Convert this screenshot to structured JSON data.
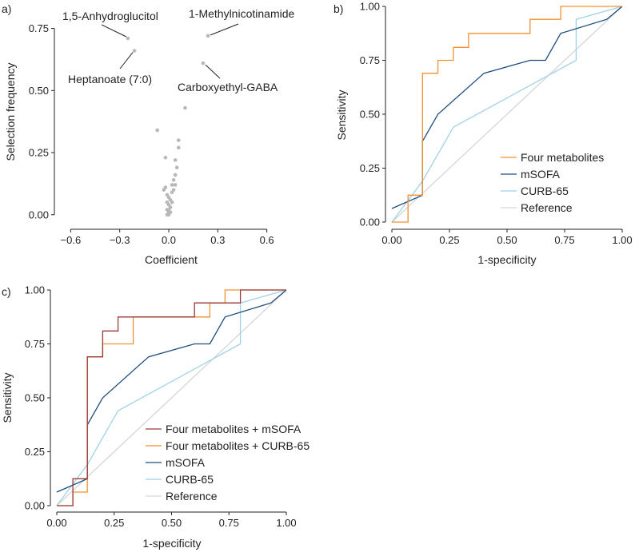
{
  "chart_data": [
    {
      "panel": "a)",
      "type": "scatter",
      "xlabel": "Coefficient",
      "ylabel": "Selection frequency",
      "xlim": [
        -0.68,
        0.68
      ],
      "ylim": [
        -0.02,
        0.8
      ],
      "xticks": [
        -0.6,
        -0.3,
        0.0,
        0.3,
        0.6
      ],
      "xtick_labels": [
        "−0.6",
        "−0.3",
        "0.0",
        "0.3",
        "0.6"
      ],
      "yticks": [
        0.0,
        0.25,
        0.5,
        0.75
      ],
      "ytick_labels": [
        "0.00",
        "0.25",
        "0.50",
        "0.75"
      ],
      "point_color": "#b8b8b8",
      "points": [
        [
          -0.25,
          0.71
        ],
        [
          -0.21,
          0.66
        ],
        [
          0.24,
          0.72
        ],
        [
          0.21,
          0.61
        ],
        [
          0.1,
          0.43
        ],
        [
          -0.07,
          0.34
        ],
        [
          0.06,
          0.3
        ],
        [
          0.06,
          0.27
        ],
        [
          -0.02,
          0.23
        ],
        [
          0.04,
          0.22
        ],
        [
          0.05,
          0.19
        ],
        [
          0.04,
          0.16
        ],
        [
          0.03,
          0.14
        ],
        [
          0.04,
          0.12
        ],
        [
          0.03,
          0.1
        ],
        [
          0.02,
          0.09
        ],
        [
          -0.02,
          0.11
        ],
        [
          -0.01,
          0.08
        ],
        [
          0.0,
          0.07
        ],
        [
          0.01,
          0.06
        ],
        [
          -0.01,
          0.05
        ],
        [
          0.02,
          0.05
        ],
        [
          0.0,
          0.04
        ],
        [
          0.01,
          0.03
        ],
        [
          -0.01,
          0.02
        ],
        [
          0.0,
          0.02
        ],
        [
          0.01,
          0.01
        ],
        [
          0.0,
          0.01
        ],
        [
          -0.01,
          0.0
        ],
        [
          0.0,
          0.0
        ],
        [
          0.02,
          0.12
        ],
        [
          -0.03,
          0.1
        ]
      ],
      "annotations": [
        {
          "text": "1,5-Anhydroglucitol",
          "x": -0.25,
          "y": 0.71
        },
        {
          "text": "Heptanoate (7:0)",
          "x": -0.21,
          "y": 0.66
        },
        {
          "text": "1-Methylnicotinamide",
          "x": 0.24,
          "y": 0.72
        },
        {
          "text": "Carboxyethyl-GABA",
          "x": 0.21,
          "y": 0.61
        }
      ]
    },
    {
      "panel": "b)",
      "type": "line",
      "xlabel": "1-specificity",
      "ylabel": "Sensitivity",
      "xlim": [
        0,
        1
      ],
      "ylim": [
        0,
        1
      ],
      "xticks": [
        0,
        0.25,
        0.5,
        0.75,
        1.0
      ],
      "xtick_labels": [
        "0.00",
        "0.25",
        "0.50",
        "0.75",
        "1.00"
      ],
      "yticks": [
        0,
        0.25,
        0.5,
        0.75,
        1.0
      ],
      "ytick_labels": [
        "0.00",
        "0.25",
        "0.50",
        "0.75",
        "1.00"
      ],
      "legend_position": "bottom-right",
      "series": [
        {
          "name": "Four metabolites",
          "color": "#f0922e",
          "step": true,
          "points": [
            [
              0,
              0
            ],
            [
              0.07,
              0
            ],
            [
              0.07,
              0.125
            ],
            [
              0.133,
              0.125
            ],
            [
              0.133,
              0.69
            ],
            [
              0.2,
              0.69
            ],
            [
              0.2,
              0.75
            ],
            [
              0.267,
              0.75
            ],
            [
              0.267,
              0.81
            ],
            [
              0.333,
              0.81
            ],
            [
              0.333,
              0.875
            ],
            [
              0.6,
              0.875
            ],
            [
              0.6,
              0.94
            ],
            [
              0.733,
              0.94
            ],
            [
              0.733,
              1.0
            ],
            [
              1.0,
              1.0
            ]
          ]
        },
        {
          "name": "mSOFA",
          "color": "#1d4d7e",
          "step": false,
          "points": [
            [
              0,
              0.063
            ],
            [
              0.133,
              0.125
            ],
            [
              0.133,
              0.375
            ],
            [
              0.2,
              0.5
            ],
            [
              0.4,
              0.69
            ],
            [
              0.6,
              0.75
            ],
            [
              0.667,
              0.75
            ],
            [
              0.733,
              0.875
            ],
            [
              0.933,
              0.94
            ],
            [
              1.0,
              1.0
            ]
          ]
        },
        {
          "name": "CURB-65",
          "color": "#9fd1e8",
          "step": false,
          "points": [
            [
              0,
              0
            ],
            [
              0.133,
              0.19
            ],
            [
              0.267,
              0.44
            ],
            [
              0.8,
              0.75
            ],
            [
              0.8,
              0.94
            ],
            [
              1.0,
              1.0
            ]
          ]
        },
        {
          "name": "Reference",
          "color": "#d6d6d6",
          "step": false,
          "points": [
            [
              0,
              0
            ],
            [
              1,
              1
            ]
          ]
        }
      ]
    },
    {
      "panel": "c)",
      "type": "line",
      "xlabel": "1-specificity",
      "ylabel": "Sensitivity",
      "xlim": [
        0,
        1
      ],
      "ylim": [
        0,
        1
      ],
      "xticks": [
        0,
        0.25,
        0.5,
        0.75,
        1.0
      ],
      "xtick_labels": [
        "0.00",
        "0.25",
        "0.50",
        "0.75",
        "1.00"
      ],
      "yticks": [
        0,
        0.25,
        0.5,
        0.75,
        1.0
      ],
      "ytick_labels": [
        "0.00",
        "0.25",
        "0.50",
        "0.75",
        "1.00"
      ],
      "legend_position": "bottom-right",
      "series": [
        {
          "name": "Four metabolites + mSOFA",
          "color": "#9c3a3a",
          "step": true,
          "points": [
            [
              0,
              0
            ],
            [
              0.07,
              0
            ],
            [
              0.07,
              0.125
            ],
            [
              0.133,
              0.125
            ],
            [
              0.133,
              0.69
            ],
            [
              0.2,
              0.69
            ],
            [
              0.2,
              0.81
            ],
            [
              0.267,
              0.81
            ],
            [
              0.267,
              0.875
            ],
            [
              0.6,
              0.875
            ],
            [
              0.6,
              0.94
            ],
            [
              0.8,
              0.94
            ],
            [
              0.8,
              1.0
            ],
            [
              1.0,
              1.0
            ]
          ]
        },
        {
          "name": "Four metabolites + CURB-65",
          "color": "#f0922e",
          "step": true,
          "points": [
            [
              0,
              0
            ],
            [
              0.07,
              0
            ],
            [
              0.07,
              0.063
            ],
            [
              0.133,
              0.063
            ],
            [
              0.133,
              0.69
            ],
            [
              0.2,
              0.69
            ],
            [
              0.2,
              0.75
            ],
            [
              0.333,
              0.75
            ],
            [
              0.333,
              0.875
            ],
            [
              0.667,
              0.875
            ],
            [
              0.667,
              0.94
            ],
            [
              0.733,
              0.94
            ],
            [
              0.733,
              1.0
            ],
            [
              1.0,
              1.0
            ]
          ]
        },
        {
          "name": "mSOFA",
          "color": "#1d4d7e",
          "step": false,
          "points": [
            [
              0,
              0.063
            ],
            [
              0.133,
              0.125
            ],
            [
              0.133,
              0.375
            ],
            [
              0.2,
              0.5
            ],
            [
              0.4,
              0.69
            ],
            [
              0.6,
              0.75
            ],
            [
              0.667,
              0.75
            ],
            [
              0.733,
              0.875
            ],
            [
              0.933,
              0.94
            ],
            [
              1.0,
              1.0
            ]
          ]
        },
        {
          "name": "CURB-65",
          "color": "#9fd1e8",
          "step": false,
          "points": [
            [
              0,
              0
            ],
            [
              0.133,
              0.19
            ],
            [
              0.267,
              0.44
            ],
            [
              0.8,
              0.75
            ],
            [
              0.8,
              0.94
            ],
            [
              1.0,
              1.0
            ]
          ]
        },
        {
          "name": "Reference",
          "color": "#d6d6d6",
          "step": false,
          "points": [
            [
              0,
              0
            ],
            [
              1,
              1
            ]
          ]
        }
      ]
    }
  ]
}
